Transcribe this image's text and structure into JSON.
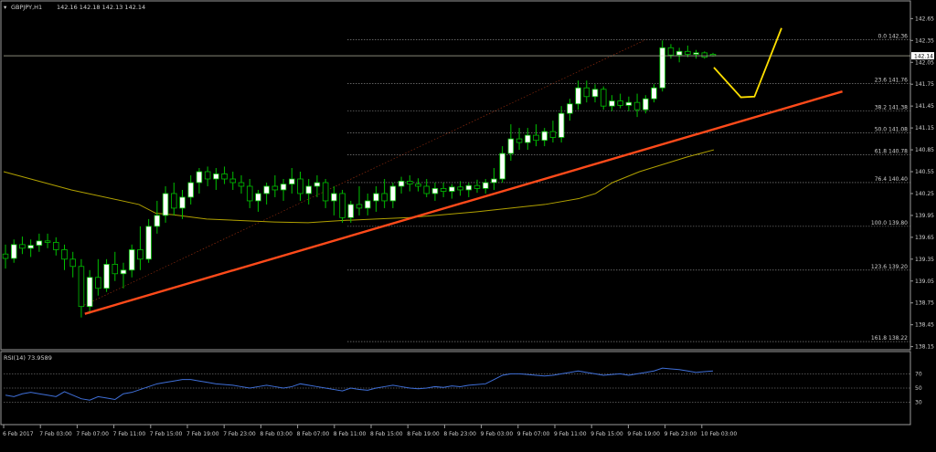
{
  "chart_data": {
    "type": "candlestick",
    "symbol_label": "GBPJPY,H1",
    "ohlc_label": "142.16 142.18 142.13 142.14",
    "colors": {
      "background": "#000000",
      "bull_candle": "#ffffff",
      "bear_candle": "#000000",
      "wick": "#00c000",
      "ma_line": "#b0a000",
      "trendline": "#ff4a1a",
      "projection": "#ffe000",
      "fib_line": "#9a9a9a",
      "rsi_line": "#3f6fd8",
      "price_line": "#d8d8c0"
    },
    "price_axis": {
      "ylim": [
        138.12,
        142.88
      ],
      "ticks": [
        "142.65",
        "142.35",
        "142.05",
        "141.75",
        "141.45",
        "141.15",
        "140.85",
        "140.55",
        "140.25",
        "139.95",
        "139.65",
        "139.35",
        "139.05",
        "138.75",
        "138.45",
        "138.15"
      ],
      "current_price": "142.14"
    },
    "time_axis": {
      "labels": [
        "6 Feb 2017",
        "7 Feb 03:00",
        "7 Feb 07:00",
        "7 Feb 11:00",
        "7 Feb 15:00",
        "7 Feb 19:00",
        "7 Feb 23:00",
        "8 Feb 03:00",
        "8 Feb 07:00",
        "8 Feb 11:00",
        "8 Feb 15:00",
        "8 Feb 19:00",
        "8 Feb 23:00",
        "9 Feb 03:00",
        "9 Feb 07:00",
        "9 Feb 11:00",
        "9 Feb 15:00",
        "9 Feb 19:00",
        "9 Feb 23:00",
        "10 Feb 03:00"
      ]
    },
    "candles": [
      [
        139.42,
        139.55,
        139.22,
        139.36
      ],
      [
        139.36,
        139.62,
        139.3,
        139.55
      ],
      [
        139.55,
        139.66,
        139.42,
        139.5
      ],
      [
        139.5,
        139.62,
        139.38,
        139.54
      ],
      [
        139.54,
        139.7,
        139.45,
        139.6
      ],
      [
        139.6,
        139.7,
        139.5,
        139.58
      ],
      [
        139.58,
        139.65,
        139.4,
        139.48
      ],
      [
        139.48,
        139.55,
        139.2,
        139.35
      ],
      [
        139.35,
        139.45,
        139.1,
        139.25
      ],
      [
        139.25,
        139.35,
        138.55,
        138.7
      ],
      [
        138.7,
        139.2,
        138.6,
        139.1
      ],
      [
        139.1,
        139.35,
        138.85,
        138.95
      ],
      [
        138.95,
        139.35,
        138.9,
        139.28
      ],
      [
        139.28,
        139.45,
        139.05,
        139.15
      ],
      [
        139.15,
        139.3,
        138.95,
        139.2
      ],
      [
        139.2,
        139.55,
        139.1,
        139.48
      ],
      [
        139.48,
        139.8,
        139.2,
        139.35
      ],
      [
        139.35,
        139.9,
        139.3,
        139.8
      ],
      [
        139.8,
        140.15,
        139.7,
        139.95
      ],
      [
        139.95,
        140.35,
        139.85,
        140.25
      ],
      [
        140.25,
        140.4,
        139.95,
        140.05
      ],
      [
        140.05,
        140.3,
        139.9,
        140.2
      ],
      [
        140.2,
        140.5,
        140.1,
        140.4
      ],
      [
        140.4,
        140.6,
        140.25,
        140.55
      ],
      [
        140.55,
        140.62,
        140.35,
        140.45
      ],
      [
        140.45,
        140.6,
        140.3,
        140.52
      ],
      [
        140.52,
        140.62,
        140.38,
        140.45
      ],
      [
        140.45,
        140.55,
        140.3,
        140.4
      ],
      [
        140.4,
        140.5,
        140.25,
        140.35
      ],
      [
        140.35,
        140.45,
        140.05,
        140.15
      ],
      [
        140.15,
        140.3,
        140.0,
        140.25
      ],
      [
        140.25,
        140.4,
        140.1,
        140.35
      ],
      [
        140.35,
        140.5,
        140.2,
        140.3
      ],
      [
        140.3,
        140.45,
        140.15,
        140.38
      ],
      [
        140.38,
        140.6,
        140.25,
        140.45
      ],
      [
        140.45,
        140.55,
        140.15,
        140.25
      ],
      [
        140.25,
        140.45,
        140.1,
        140.35
      ],
      [
        140.35,
        140.5,
        140.2,
        140.4
      ],
      [
        140.4,
        140.45,
        140.05,
        140.15
      ],
      [
        140.15,
        140.35,
        139.95,
        140.25
      ],
      [
        140.25,
        140.3,
        139.85,
        139.92
      ],
      [
        139.92,
        140.15,
        139.85,
        140.1
      ],
      [
        140.1,
        140.35,
        139.95,
        140.05
      ],
      [
        140.05,
        140.25,
        139.95,
        140.15
      ],
      [
        140.15,
        140.35,
        140.0,
        140.25
      ],
      [
        140.25,
        140.45,
        140.05,
        140.15
      ],
      [
        140.15,
        140.4,
        140.05,
        140.35
      ],
      [
        140.35,
        140.48,
        140.25,
        140.42
      ],
      [
        140.42,
        140.5,
        140.28,
        140.38
      ],
      [
        140.38,
        140.46,
        140.28,
        140.35
      ],
      [
        140.35,
        140.45,
        140.2,
        140.25
      ],
      [
        140.25,
        140.4,
        140.15,
        140.32
      ],
      [
        140.32,
        140.4,
        140.2,
        140.28
      ],
      [
        140.28,
        140.38,
        140.18,
        140.34
      ],
      [
        140.34,
        140.42,
        140.22,
        140.3
      ],
      [
        140.3,
        140.4,
        140.2,
        140.36
      ],
      [
        140.36,
        140.44,
        140.26,
        140.32
      ],
      [
        140.32,
        140.45,
        140.25,
        140.4
      ],
      [
        140.4,
        140.6,
        140.3,
        140.45
      ],
      [
        140.45,
        140.9,
        140.4,
        140.8
      ],
      [
        140.8,
        141.2,
        140.7,
        141.0
      ],
      [
        141.0,
        141.15,
        140.85,
        140.95
      ],
      [
        140.95,
        141.15,
        140.85,
        141.05
      ],
      [
        141.05,
        141.2,
        140.9,
        140.98
      ],
      [
        140.98,
        141.15,
        140.9,
        141.1
      ],
      [
        141.1,
        141.25,
        140.95,
        141.02
      ],
      [
        141.02,
        141.45,
        140.95,
        141.35
      ],
      [
        141.35,
        141.55,
        141.25,
        141.48
      ],
      [
        141.48,
        141.8,
        141.4,
        141.7
      ],
      [
        141.7,
        141.8,
        141.5,
        141.58
      ],
      [
        141.58,
        141.75,
        141.5,
        141.68
      ],
      [
        141.68,
        141.72,
        141.4,
        141.45
      ],
      [
        141.45,
        141.6,
        141.38,
        141.52
      ],
      [
        141.52,
        141.62,
        141.42,
        141.46
      ],
      [
        141.46,
        141.58,
        141.38,
        141.5
      ],
      [
        141.5,
        141.62,
        141.3,
        141.4
      ],
      [
        141.4,
        141.6,
        141.35,
        141.55
      ],
      [
        141.55,
        141.75,
        141.5,
        141.7
      ],
      [
        141.7,
        142.35,
        141.65,
        142.25
      ],
      [
        142.25,
        142.3,
        142.1,
        142.15
      ],
      [
        142.15,
        142.25,
        142.05,
        142.2
      ],
      [
        142.2,
        142.28,
        142.12,
        142.16
      ],
      [
        142.16,
        142.22,
        142.1,
        142.18
      ],
      [
        142.18,
        142.2,
        142.1,
        142.12
      ],
      [
        142.16,
        142.18,
        142.13,
        142.14
      ]
    ],
    "ma_line": [
      [
        0,
        140.55
      ],
      [
        20,
        140.3
      ],
      [
        40,
        140.1
      ],
      [
        45,
        139.98
      ],
      [
        50,
        139.96
      ],
      [
        60,
        139.9
      ],
      [
        70,
        139.88
      ],
      [
        80,
        139.86
      ],
      [
        90,
        139.85
      ],
      [
        100,
        139.88
      ],
      [
        110,
        139.9
      ],
      [
        120,
        139.92
      ],
      [
        130,
        139.96
      ],
      [
        140,
        140.0
      ],
      [
        150,
        140.05
      ],
      [
        160,
        140.1
      ],
      [
        170,
        140.18
      ],
      [
        175,
        140.25
      ],
      [
        180,
        140.4
      ],
      [
        188,
        140.55
      ],
      [
        195,
        140.65
      ],
      [
        202,
        140.75
      ],
      [
        210,
        140.85
      ]
    ],
    "trendline": [
      [
        [
          24,
          138.6
        ],
        [
          248,
          141.65
        ]
      ]
    ],
    "projection": [
      [
        210,
        141.98
      ],
      [
        218,
        141.57
      ],
      [
        222,
        141.58
      ],
      [
        230,
        142.52
      ]
    ],
    "fibonacci": [
      {
        "label": "0.0 142.36",
        "value": 142.36
      },
      {
        "label": "23.6 141.76",
        "value": 141.76
      },
      {
        "label": "38.2 141.38",
        "value": 141.38
      },
      {
        "label": "50.0 141.08",
        "value": 141.08
      },
      {
        "label": "61.8 140.78",
        "value": 140.78
      },
      {
        "label": "76.4 140.40",
        "value": 140.4
      },
      {
        "label": "100.0 139.80",
        "value": 139.8
      },
      {
        "label": "123.6 139.20",
        "value": 139.2
      },
      {
        "label": "161.8 138.22",
        "value": 138.22
      }
    ],
    "rsi": {
      "label": "RSI(14) 73.9589",
      "ylim": [
        0,
        100
      ],
      "ticks": [
        "70",
        "50",
        "30"
      ],
      "levels": [
        70,
        50,
        30
      ],
      "values": [
        40,
        38,
        42,
        44,
        42,
        40,
        38,
        45,
        40,
        35,
        33,
        38,
        36,
        34,
        42,
        44,
        48,
        52,
        56,
        58,
        60,
        62,
        62,
        60,
        58,
        56,
        55,
        54,
        52,
        50,
        52,
        54,
        52,
        50,
        52,
        56,
        54,
        52,
        50,
        48,
        46,
        50,
        48,
        47,
        50,
        52,
        54,
        52,
        50,
        49,
        50,
        52,
        51,
        53,
        52,
        54,
        55,
        56,
        62,
        68,
        70,
        70,
        69,
        68,
        67,
        68,
        70,
        72,
        74,
        72,
        70,
        68,
        69,
        70,
        68,
        70,
        72,
        74,
        78,
        77,
        76,
        74,
        72,
        73,
        74
      ]
    }
  }
}
